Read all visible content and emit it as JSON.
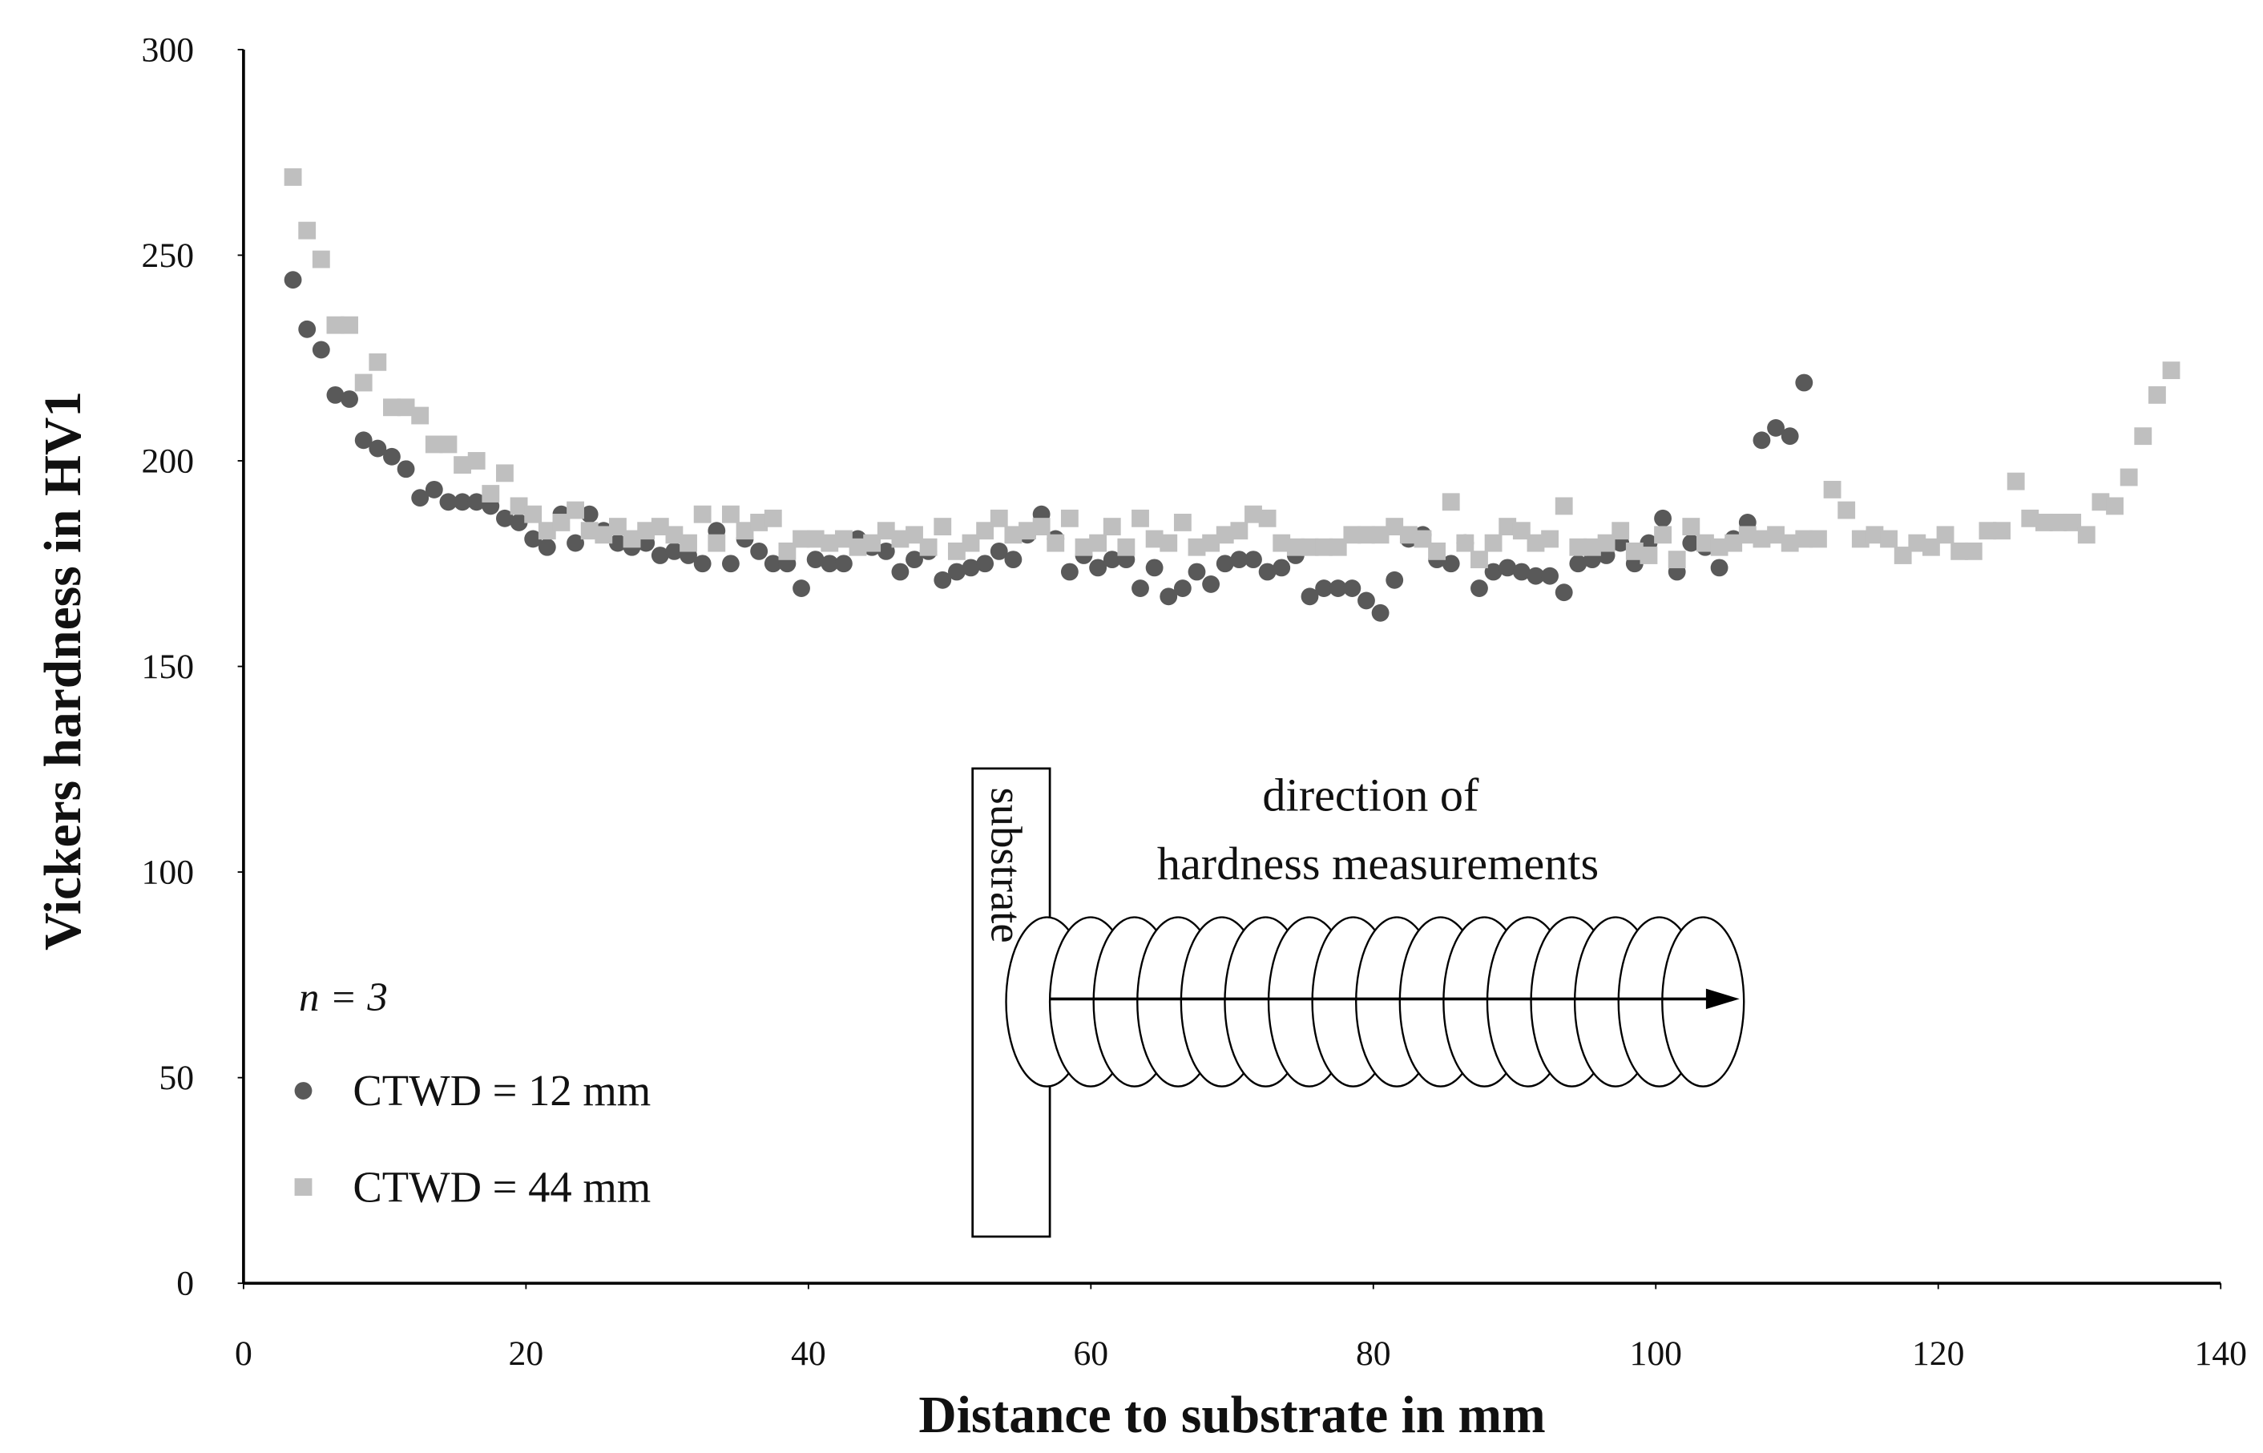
{
  "chart_data": {
    "type": "scatter",
    "xlabel": "Distance to substrate in mm",
    "ylabel": "Vickers hardness in HV1",
    "xlim": [
      0,
      140
    ],
    "xticks": [
      0,
      20,
      40,
      60,
      80,
      100,
      120,
      140
    ],
    "ylim": [
      0,
      300
    ],
    "yticks": [
      0,
      50,
      100,
      150,
      200,
      250,
      300
    ],
    "grid": false,
    "annotations": {
      "sample_count": "n = 3",
      "substrate": "substrate",
      "direction_line1": "direction of",
      "direction_line2": "hardness measurements"
    },
    "series": [
      {
        "name": "CTWD = 12 mm",
        "color": "#595959",
        "marker": "circle",
        "x": [
          3.5,
          4.5,
          5.5,
          6.5,
          7.5,
          8.5,
          9.5,
          10.5,
          11.5,
          12.5,
          13.5,
          14.5,
          15.5,
          16.5,
          17.5,
          18.5,
          19.5,
          20.5,
          21.5,
          22.5,
          23.5,
          24.5,
          25.5,
          26.5,
          27.5,
          28.5,
          29.5,
          30.5,
          31.5,
          32.5,
          33.5,
          34.5,
          35.5,
          36.5,
          37.5,
          38.5,
          39.5,
          40.5,
          41.5,
          42.5,
          43.5,
          44.5,
          45.5,
          46.5,
          47.5,
          48.5,
          49.5,
          50.5,
          51.5,
          52.5,
          53.5,
          54.5,
          55.5,
          56.5,
          57.5,
          58.5,
          59.5,
          60.5,
          61.5,
          62.5,
          63.5,
          64.5,
          65.5,
          66.5,
          67.5,
          68.5,
          69.5,
          70.5,
          71.5,
          72.5,
          73.5,
          74.5,
          75.5,
          76.5,
          77.5,
          78.5,
          79.5,
          80.5,
          81.5,
          82.5,
          83.5,
          84.5,
          85.5,
          86.5,
          87.5,
          88.5,
          89.5,
          90.5,
          91.5,
          92.5,
          93.5,
          94.5,
          95.5,
          96.5,
          97.5,
          98.5,
          99.5,
          100.5,
          101.5,
          102.5,
          103.5,
          104.5,
          105.5,
          106.5,
          107.5,
          108.5,
          109.5,
          110.5
        ],
        "values": [
          244,
          232,
          227,
          216,
          215,
          205,
          203,
          201,
          198,
          191,
          193,
          190,
          190,
          190,
          189,
          186,
          185,
          181,
          179,
          187,
          180,
          187,
          183,
          180,
          179,
          180,
          177,
          178,
          177,
          175,
          183,
          175,
          181,
          178,
          175,
          175,
          169,
          176,
          175,
          175,
          181,
          179,
          178,
          173,
          176,
          178,
          171,
          173,
          174,
          175,
          178,
          176,
          182,
          187,
          181,
          173,
          177,
          174,
          176,
          176,
          169,
          174,
          167,
          169,
          173,
          170,
          175,
          176,
          176,
          173,
          174,
          177,
          167,
          169,
          169,
          169,
          166,
          163,
          171,
          181,
          182,
          176,
          175,
          180,
          169,
          173,
          174,
          173,
          172,
          172,
          168,
          175,
          176,
          177,
          180,
          175,
          180,
          186,
          173,
          180,
          179,
          174,
          181,
          185,
          205,
          208,
          206,
          219
        ]
      },
      {
        "name": "CTWD = 44 mm",
        "color": "#bfbfbf",
        "marker": "square",
        "x": [
          3.5,
          4.5,
          5.5,
          6.5,
          7.5,
          8.5,
          9.5,
          10.5,
          11.5,
          12.5,
          13.5,
          14.5,
          15.5,
          16.5,
          17.5,
          18.5,
          19.5,
          20.5,
          21.5,
          22.5,
          23.5,
          24.5,
          25.5,
          26.5,
          27.5,
          28.5,
          29.5,
          30.5,
          31.5,
          32.5,
          33.5,
          34.5,
          35.5,
          36.5,
          37.5,
          38.5,
          39.5,
          40.5,
          41.5,
          42.5,
          43.5,
          44.5,
          45.5,
          46.5,
          47.5,
          48.5,
          49.5,
          50.5,
          51.5,
          52.5,
          53.5,
          54.5,
          55.5,
          56.5,
          57.5,
          58.5,
          59.5,
          60.5,
          61.5,
          62.5,
          63.5,
          64.5,
          65.5,
          66.5,
          67.5,
          68.5,
          69.5,
          70.5,
          71.5,
          72.5,
          73.5,
          74.5,
          75.5,
          76.5,
          77.5,
          78.5,
          79.5,
          80.5,
          81.5,
          82.5,
          83.5,
          84.5,
          85.5,
          86.5,
          87.5,
          88.5,
          89.5,
          90.5,
          91.5,
          92.5,
          93.5,
          94.5,
          95.5,
          96.5,
          97.5,
          98.5,
          99.5,
          100.5,
          101.5,
          102.5,
          103.5,
          104.5,
          105.5,
          106.5,
          107.5,
          108.5,
          109.5,
          110.5,
          111.5,
          112.5,
          113.5,
          114.5,
          115.5,
          116.5,
          117.5,
          118.5,
          119.5,
          120.5,
          121.5,
          122.5,
          123.5,
          124.5,
          125.5,
          126.5,
          127.5,
          128.5,
          129.5,
          130.5,
          131.5,
          132.5,
          133.5,
          134.5,
          135.5,
          136.5
        ],
        "values": [
          269,
          256,
          249,
          233,
          233,
          219,
          224,
          213,
          213,
          211,
          204,
          204,
          199,
          200,
          192,
          197,
          189,
          187,
          183,
          185,
          188,
          183,
          182,
          184,
          181,
          183,
          184,
          182,
          180,
          187,
          180,
          187,
          183,
          185,
          186,
          178,
          181,
          181,
          180,
          181,
          179,
          180,
          183,
          181,
          182,
          179,
          184,
          178,
          180,
          183,
          186,
          182,
          183,
          184,
          180,
          186,
          179,
          180,
          184,
          179,
          186,
          181,
          180,
          185,
          179,
          180,
          182,
          183,
          187,
          186,
          180,
          179,
          179,
          179,
          179,
          182,
          182,
          182,
          184,
          182,
          181,
          178,
          190,
          180,
          176,
          180,
          184,
          183,
          180,
          181,
          189,
          179,
          179,
          180,
          183,
          178,
          177,
          182,
          176,
          184,
          180,
          179,
          180,
          182,
          181,
          182,
          180,
          181,
          181,
          193,
          188,
          181,
          182,
          181,
          177,
          180,
          179,
          182,
          178,
          178,
          183,
          183,
          195,
          186,
          185,
          185,
          185,
          182,
          190,
          189,
          196,
          206,
          216,
          222
        ]
      }
    ]
  }
}
